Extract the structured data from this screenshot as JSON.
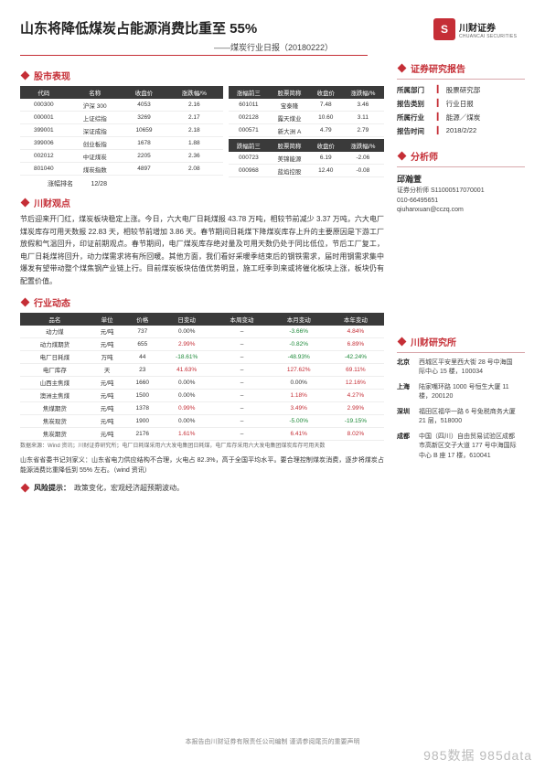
{
  "header": {
    "title": "山东将降低煤炭占能源消费比重至 55%",
    "subtitle": "——煤炭行业日报（20180222）",
    "logo_cn": "川财证券",
    "logo_en": "CHUANCAI SECURITIES"
  },
  "sections": {
    "stocks": "股市表现",
    "viewpoint": "川财观点",
    "sector": "行业动态",
    "risk_label": "风险提示：",
    "risk_text": "政策变化，宏观经济超预期波动。",
    "report": "证券研究报告",
    "analyst": "分析师",
    "research": "川财研究所"
  },
  "stock_left": {
    "headers": [
      "代码",
      "名称",
      "收盘价",
      "涨跌幅/%"
    ],
    "rows": [
      [
        "000300",
        "沪深 300",
        "4053",
        "2.16"
      ],
      [
        "000001",
        "上证综指",
        "3269",
        "2.17"
      ],
      [
        "399001",
        "深证成指",
        "10659",
        "2.18"
      ],
      [
        "399006",
        "创业板指",
        "1678",
        "1.88"
      ],
      [
        "002012",
        "中证煤炭",
        "2205",
        "2.36"
      ],
      [
        "801040",
        "煤炭指数",
        "4897",
        "2.08"
      ]
    ],
    "rank_label": "涨幅排名",
    "rank_value": "12/28"
  },
  "stock_right_top": {
    "headers": [
      "涨幅前三",
      "股票简称",
      "收盘价",
      "涨跌幅/%"
    ],
    "rows": [
      [
        "601011",
        "宝泰隆",
        "7.48",
        "3.46"
      ],
      [
        "002128",
        "露天煤业",
        "10.60",
        "3.11"
      ],
      [
        "000571",
        "新大洲 A",
        "4.79",
        "2.79"
      ]
    ]
  },
  "stock_right_bot": {
    "headers": [
      "跌幅前三",
      "股票简称",
      "收盘价",
      "涨跌幅/%"
    ],
    "rows": [
      [
        "000723",
        "美锦能源",
        "6.19",
        "-2.06"
      ],
      [
        "000968",
        "蓝焰控股",
        "12.40",
        "-0.08"
      ]
    ]
  },
  "viewpoint_text": "节后迎来开门红，煤炭板块稳定上涨。今日，六大电厂日耗煤报 43.78 万吨，相较节前减少 3.37 万吨，六大电厂煤炭库存可用天数报 22.83 天，相较节前增加 3.86 天。春节期间日耗煤下降煤炭库存上升的主要原因是下游工厂放假和气温回升，印证前期观点。春节期间，电厂煤炭库存绝对量及可用天数仍处于同比低位，节后工厂复工，电厂日耗煤将回升，动力煤需求将有所回暖。其他方面，我们看好采暖季结束后的钢铁需求，届时用钢需求集中爆发有望带动整个煤焦钢产业链上行。目前煤炭板块估值优势明显，施工旺季到来或将催化板块上涨，板块仍有配置价值。",
  "sector_table": {
    "headers": [
      "品名",
      "单位",
      "价格",
      "日变动",
      "本周变动",
      "本月变动",
      "本年变动"
    ],
    "rows": [
      {
        "c": [
          "动力煤",
          "元/吨",
          "737",
          "0.00%",
          "–",
          "-3.66%",
          "4.84%"
        ],
        "cls": [
          "",
          "",
          "",
          "",
          "",
          "neg",
          "pos"
        ]
      },
      {
        "c": [
          "动力煤期货",
          "元/吨",
          "655",
          "2.99%",
          "–",
          "-0.82%",
          "6.89%"
        ],
        "cls": [
          "",
          "",
          "",
          "pos",
          "",
          "neg",
          "pos"
        ]
      },
      {
        "c": [
          "电厂日耗煤",
          "万吨",
          "44",
          "-18.61%",
          "–",
          "-48.93%",
          "-42.24%"
        ],
        "cls": [
          "",
          "",
          "",
          "neg",
          "",
          "neg",
          "neg"
        ]
      },
      {
        "c": [
          "电厂库存",
          "天",
          "23",
          "41.63%",
          "–",
          "127.62%",
          "69.11%"
        ],
        "cls": [
          "",
          "",
          "",
          "pos",
          "",
          "pos",
          "pos"
        ]
      },
      {
        "c": [
          "山西主焦煤",
          "元/吨",
          "1660",
          "0.00%",
          "–",
          "0.00%",
          "12.16%"
        ],
        "cls": [
          "",
          "",
          "",
          "",
          "",
          "",
          "pos"
        ]
      },
      {
        "c": [
          "澳洲主焦煤",
          "元/吨",
          "1500",
          "0.00%",
          "–",
          "1.18%",
          "4.27%"
        ],
        "cls": [
          "",
          "",
          "",
          "",
          "",
          "pos",
          "pos"
        ]
      },
      {
        "c": [
          "焦煤期货",
          "元/吨",
          "1378",
          "0.99%",
          "–",
          "3.49%",
          "2.99%"
        ],
        "cls": [
          "",
          "",
          "",
          "pos",
          "",
          "pos",
          "pos"
        ]
      },
      {
        "c": [
          "焦炭现货",
          "元/吨",
          "1900",
          "0.00%",
          "–",
          "-5.00%",
          "-19.15%"
        ],
        "cls": [
          "",
          "",
          "",
          "",
          "",
          "neg",
          "neg"
        ]
      },
      {
        "c": [
          "焦炭期货",
          "元/吨",
          "2176",
          "1.61%",
          "–",
          "6.41%",
          "8.02%"
        ],
        "cls": [
          "",
          "",
          "",
          "pos",
          "",
          "pos",
          "pos"
        ]
      }
    ],
    "source": "数据来源：Wind 资讯；川财证券研究所；电厂日耗煤采用六大发电集团日耗煤，电厂库存采用六大发电集团煤炭库存可用天数"
  },
  "extra_para": "山东省省委书记刘家义：山东省电力供应结构不合理，火电占 82.3%，高于全国平均水平。要合理控制煤炭消费，逐步将煤炭占能源消费比重降低到 55% 左右。（wind 资讯）",
  "report_info": {
    "rows": [
      {
        "label": "所属部门",
        "value": "股票研究部"
      },
      {
        "label": "报告类别",
        "value": "行业日报"
      },
      {
        "label": "所属行业",
        "value": "能源／煤炭"
      },
      {
        "label": "报告时间",
        "value": "2018/2/22"
      }
    ]
  },
  "analyst_info": {
    "name": "邱瀚萱",
    "cert": "证券分析师 S11000517070001",
    "phone": "010-66495651",
    "email": "qiuhanxuan@cczq.com"
  },
  "offices": [
    {
      "city": "北京",
      "addr": "西城区平安里西大街 28 号中海国际中心 15 楼，100034"
    },
    {
      "city": "上海",
      "addr": "陆家嘴环路 1000 号恒生大厦 11 楼，200120"
    },
    {
      "city": "深圳",
      "addr": "福田区福华一路 6 号免税商务大厦 21 层，518000"
    },
    {
      "city": "成都",
      "addr": "中国（四川）自由贸易试验区成都市高新区交子大道 177 号中海国际中心 B 座 17 楼，610041"
    }
  ],
  "footer": "本报告由川财证券有限责任公司编制  谨请参阅尾页的重要声明",
  "watermark": "985数据 985data"
}
